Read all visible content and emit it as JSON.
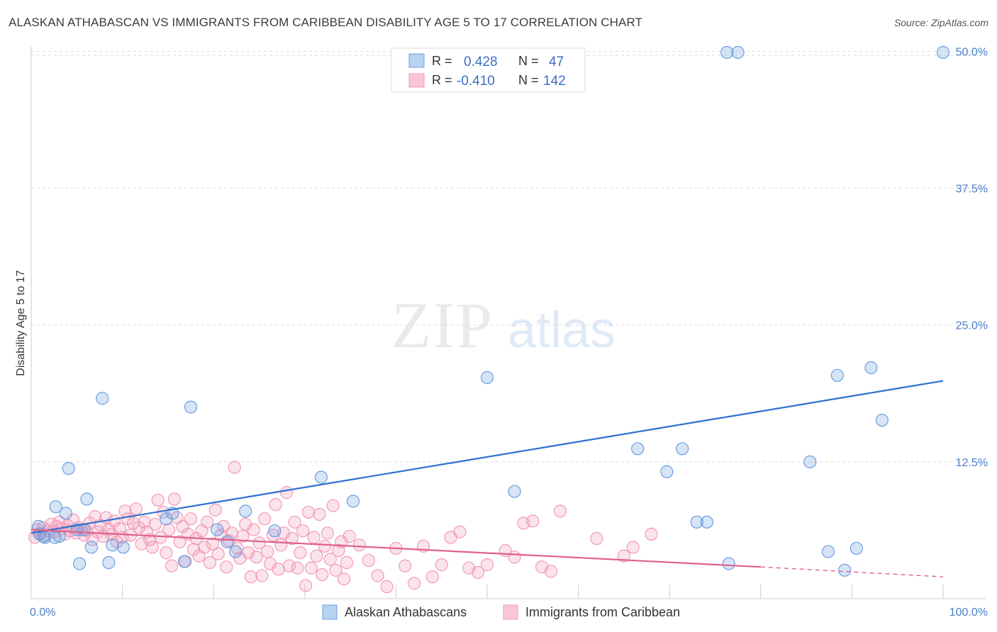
{
  "title": "ALASKAN ATHABASCAN VS IMMIGRANTS FROM CARIBBEAN DISABILITY AGE 5 TO 17 CORRELATION CHART",
  "source": "Source: ZipAtlas.com",
  "watermark": {
    "zip": "ZIP",
    "atlas": "atlas"
  },
  "colors": {
    "blue": "#6a9fe0",
    "blue_line": "#2e6fd0",
    "pink": "#f29ab8",
    "pink_line": "#e0608c",
    "axis_text": "#4a7cc9"
  },
  "legend": {
    "r_label": "R =",
    "n_label": "N =",
    "series1": {
      "r": "0.428",
      "n": "47"
    },
    "series2": {
      "r": "-0.410",
      "n": "142"
    }
  },
  "chart_data": {
    "type": "scatter",
    "title": "ALASKAN ATHABASCAN VS IMMIGRANTS FROM CARIBBEAN DISABILITY AGE 5 TO 17 CORRELATION CHART",
    "xlabel": "",
    "ylabel": "Disability Age 5 to 17",
    "xlim": [
      0,
      100
    ],
    "ylim": [
      0,
      51
    ],
    "y_ticks": [
      "12.5%",
      "25.0%",
      "37.5%",
      "50.0%"
    ],
    "y_tick_values": [
      12.5,
      25.0,
      37.5,
      50.0
    ],
    "x_tick_labels": [
      "0.0%",
      "100.0%"
    ],
    "x_tick_values": [
      0,
      10,
      20,
      30,
      40,
      50,
      60,
      70,
      80,
      90,
      100
    ],
    "series": [
      {
        "name": "Alaskan Athabascans",
        "color": "#6a9fe0",
        "trend": {
          "x": [
            0,
            100
          ],
          "y": [
            6.0,
            19.9
          ]
        },
        "points": [
          [
            0.8,
            6.6
          ],
          [
            0.9,
            5.9
          ],
          [
            1.3,
            5.7
          ],
          [
            1.5,
            5.6
          ],
          [
            2.6,
            5.6
          ],
          [
            2.7,
            8.4
          ],
          [
            3.1,
            5.7
          ],
          [
            3.8,
            7.8
          ],
          [
            4.1,
            11.9
          ],
          [
            5.0,
            6.3
          ],
          [
            5.3,
            3.2
          ],
          [
            5.8,
            6.3
          ],
          [
            6.1,
            9.1
          ],
          [
            6.6,
            4.7
          ],
          [
            7.8,
            18.3
          ],
          [
            8.5,
            3.3
          ],
          [
            8.9,
            4.9
          ],
          [
            10.1,
            4.7
          ],
          [
            14.8,
            7.3
          ],
          [
            15.5,
            7.8
          ],
          [
            16.8,
            3.4
          ],
          [
            17.5,
            17.5
          ],
          [
            20.4,
            6.3
          ],
          [
            21.5,
            5.2
          ],
          [
            22.4,
            4.3
          ],
          [
            23.5,
            8.0
          ],
          [
            26.7,
            6.2
          ],
          [
            31.8,
            11.1
          ],
          [
            35.3,
            8.9
          ],
          [
            50.0,
            20.2
          ],
          [
            53.0,
            9.8
          ],
          [
            66.5,
            13.7
          ],
          [
            69.7,
            11.6
          ],
          [
            71.4,
            13.7
          ],
          [
            73.0,
            7.0
          ],
          [
            74.1,
            7.0
          ],
          [
            76.3,
            49.9
          ],
          [
            77.5,
            49.9
          ],
          [
            76.5,
            3.2
          ],
          [
            85.4,
            12.5
          ],
          [
            87.4,
            4.3
          ],
          [
            88.4,
            20.4
          ],
          [
            89.2,
            2.6
          ],
          [
            90.5,
            4.6
          ],
          [
            92.1,
            21.1
          ],
          [
            93.3,
            16.3
          ],
          [
            100.0,
            49.9
          ]
        ]
      },
      {
        "name": "Immigrants from Caribbean",
        "color": "#f29ab8",
        "trend": {
          "x": [
            0,
            80
          ],
          "y": [
            6.3,
            2.9
          ]
        },
        "trend_dashed": {
          "x": [
            80,
            100
          ],
          "y": [
            2.9,
            2.0
          ]
        },
        "points": [
          [
            0.4,
            5.6
          ],
          [
            0.7,
            6.3
          ],
          [
            1.0,
            6.0
          ],
          [
            1.3,
            6.5
          ],
          [
            1.6,
            5.8
          ],
          [
            1.9,
            6.2
          ],
          [
            2.2,
            6.8
          ],
          [
            2.5,
            6.1
          ],
          [
            2.8,
            6.6
          ],
          [
            3.1,
            7.0
          ],
          [
            3.4,
            6.4
          ],
          [
            3.7,
            5.9
          ],
          [
            4.0,
            6.7
          ],
          [
            4.3,
            6.2
          ],
          [
            4.6,
            7.2
          ],
          [
            4.9,
            6.0
          ],
          [
            5.2,
            6.5
          ],
          [
            5.5,
            6.3
          ],
          [
            5.8,
            5.8
          ],
          [
            6.1,
            6.2
          ],
          [
            6.4,
            6.9
          ],
          [
            6.7,
            5.4
          ],
          [
            7.0,
            7.5
          ],
          [
            7.3,
            6.1
          ],
          [
            7.6,
            6.7
          ],
          [
            7.9,
            5.7
          ],
          [
            8.2,
            7.4
          ],
          [
            8.5,
            6.3
          ],
          [
            8.8,
            5.9
          ],
          [
            9.1,
            7.1
          ],
          [
            9.4,
            5.2
          ],
          [
            9.7,
            6.4
          ],
          [
            10.0,
            5.6
          ],
          [
            10.3,
            8.0
          ],
          [
            10.6,
            7.3
          ],
          [
            10.9,
            5.8
          ],
          [
            11.2,
            6.9
          ],
          [
            11.5,
            8.2
          ],
          [
            11.8,
            6.5
          ],
          [
            12.1,
            5.0
          ],
          [
            12.4,
            7.0
          ],
          [
            12.7,
            6.1
          ],
          [
            13.0,
            5.4
          ],
          [
            13.3,
            4.7
          ],
          [
            13.6,
            6.8
          ],
          [
            13.9,
            9.0
          ],
          [
            14.2,
            5.6
          ],
          [
            14.5,
            7.9
          ],
          [
            14.8,
            4.2
          ],
          [
            15.1,
            6.3
          ],
          [
            15.4,
            3.0
          ],
          [
            15.7,
            9.1
          ],
          [
            16.0,
            7.4
          ],
          [
            16.3,
            5.2
          ],
          [
            16.6,
            6.6
          ],
          [
            16.9,
            3.4
          ],
          [
            17.2,
            5.9
          ],
          [
            17.5,
            7.3
          ],
          [
            17.8,
            4.5
          ],
          [
            18.1,
            5.5
          ],
          [
            18.4,
            3.9
          ],
          [
            18.7,
            6.2
          ],
          [
            19.0,
            4.7
          ],
          [
            19.3,
            7.0
          ],
          [
            19.6,
            3.3
          ],
          [
            19.9,
            5.0
          ],
          [
            20.2,
            8.1
          ],
          [
            20.5,
            4.1
          ],
          [
            20.8,
            5.8
          ],
          [
            21.1,
            6.6
          ],
          [
            21.4,
            2.9
          ],
          [
            21.7,
            5.3
          ],
          [
            22.0,
            6.0
          ],
          [
            22.3,
            12.0
          ],
          [
            22.6,
            4.6
          ],
          [
            22.9,
            3.7
          ],
          [
            23.2,
            5.7
          ],
          [
            23.5,
            6.8
          ],
          [
            23.8,
            4.2
          ],
          [
            24.1,
            2.0
          ],
          [
            24.4,
            6.3
          ],
          [
            24.7,
            3.8
          ],
          [
            25.0,
            5.1
          ],
          [
            25.3,
            2.1
          ],
          [
            25.6,
            7.3
          ],
          [
            25.9,
            4.3
          ],
          [
            26.2,
            3.2
          ],
          [
            26.5,
            5.8
          ],
          [
            26.8,
            8.6
          ],
          [
            27.1,
            2.7
          ],
          [
            27.4,
            4.9
          ],
          [
            27.7,
            6.0
          ],
          [
            28.0,
            9.7
          ],
          [
            28.3,
            3.0
          ],
          [
            28.6,
            5.5
          ],
          [
            28.9,
            7.0
          ],
          [
            29.2,
            2.8
          ],
          [
            29.5,
            4.2
          ],
          [
            29.8,
            6.2
          ],
          [
            30.1,
            1.2
          ],
          [
            30.4,
            7.9
          ],
          [
            30.7,
            2.8
          ],
          [
            31.0,
            5.6
          ],
          [
            31.3,
            3.9
          ],
          [
            31.6,
            7.7
          ],
          [
            31.9,
            2.2
          ],
          [
            32.2,
            4.8
          ],
          [
            32.5,
            6.0
          ],
          [
            32.8,
            3.6
          ],
          [
            33.1,
            8.5
          ],
          [
            33.4,
            2.6
          ],
          [
            33.7,
            4.4
          ],
          [
            34.0,
            5.2
          ],
          [
            34.3,
            1.8
          ],
          [
            34.6,
            3.3
          ],
          [
            34.9,
            5.7
          ],
          [
            36.0,
            4.9
          ],
          [
            37.0,
            3.5
          ],
          [
            38.0,
            2.1
          ],
          [
            39.0,
            1.1
          ],
          [
            40.0,
            4.6
          ],
          [
            41.0,
            3.0
          ],
          [
            42.0,
            1.4
          ],
          [
            43.0,
            4.8
          ],
          [
            44.0,
            2.0
          ],
          [
            45.0,
            3.1
          ],
          [
            46.0,
            5.6
          ],
          [
            47.0,
            6.1
          ],
          [
            48.0,
            2.8
          ],
          [
            49.0,
            2.4
          ],
          [
            50.0,
            3.1
          ],
          [
            52.0,
            4.4
          ],
          [
            53.0,
            3.8
          ],
          [
            54.0,
            6.9
          ],
          [
            55.0,
            7.1
          ],
          [
            56.0,
            2.9
          ],
          [
            57.0,
            2.5
          ],
          [
            58.0,
            8.0
          ],
          [
            62.0,
            5.5
          ],
          [
            65.0,
            3.9
          ],
          [
            66.0,
            4.7
          ],
          [
            68.0,
            5.9
          ]
        ]
      }
    ]
  },
  "bottom_legend": {
    "series1": "Alaskan Athabascans",
    "series2": "Immigrants from Caribbean"
  }
}
